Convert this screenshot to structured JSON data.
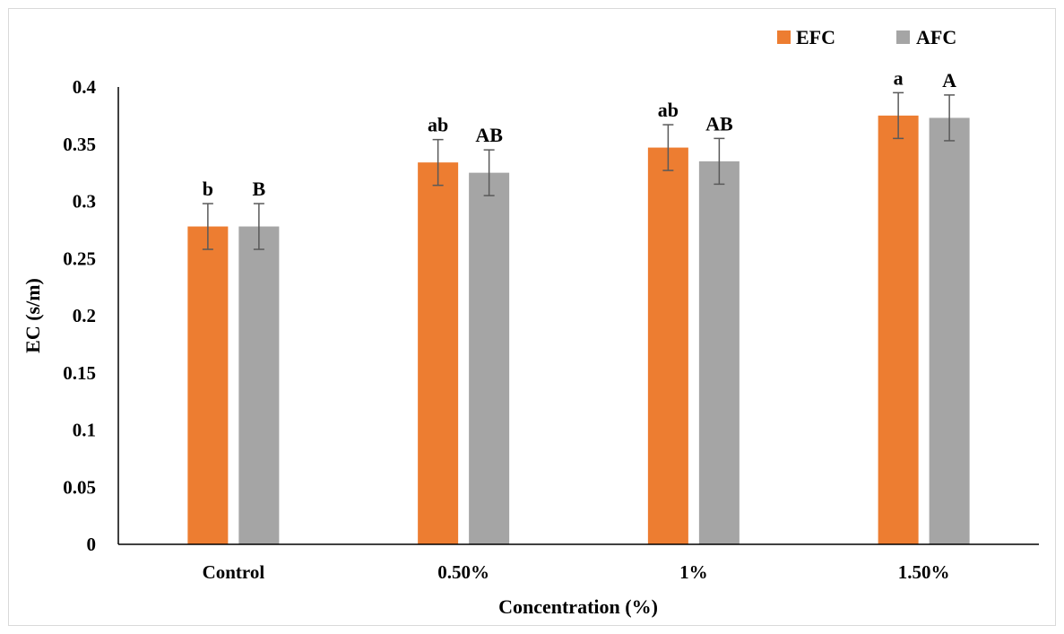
{
  "chart_data": {
    "type": "bar",
    "title": "",
    "xlabel": "Concentration (%)",
    "ylabel": "EC (s/m)",
    "categories": [
      "Control",
      "0.50%",
      "1%",
      "1.50%"
    ],
    "ylim": [
      0,
      0.4
    ],
    "yticks": [
      "0",
      "0.05",
      "0.1",
      "0.15",
      "0.2",
      "0.25",
      "0.3",
      "0.35",
      "0.4"
    ],
    "grid": false,
    "legend_position": "top-right",
    "series": [
      {
        "name": "EFC",
        "color": "#ED7D31",
        "values": [
          0.278,
          0.334,
          0.347,
          0.375
        ],
        "errors": [
          0.02,
          0.02,
          0.02,
          0.02
        ],
        "labels": [
          "b",
          "ab",
          "ab",
          "a"
        ]
      },
      {
        "name": "AFC",
        "color": "#A5A5A5",
        "values": [
          0.278,
          0.325,
          0.335,
          0.373
        ],
        "errors": [
          0.02,
          0.02,
          0.02,
          0.02
        ],
        "labels": [
          "B",
          "AB",
          "AB",
          "A"
        ]
      }
    ]
  }
}
